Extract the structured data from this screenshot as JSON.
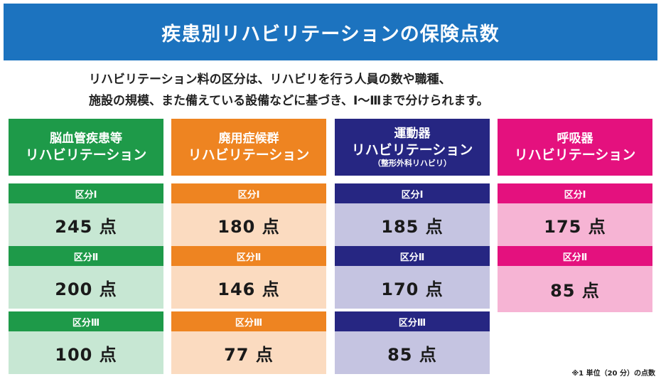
{
  "title": "疾患別リハビリテーションの保険点数",
  "intro": {
    "line1": "リハビリテーション料の区分は、リハビリを行う人員の数や職種、",
    "line2": "施設の規模、また備えている設備などに基づき、Ⅰ～Ⅲまで分けられます。"
  },
  "colors": {
    "title_bg": "#1c73bf",
    "green": "#1e9a49",
    "green_light": "#c7e7d3",
    "orange": "#ee8421",
    "orange_light": "#fbdbc0",
    "navy": "#262682",
    "navy_light": "#c5c4e1",
    "pink": "#e4117e",
    "pink_light": "#f6b4d4"
  },
  "columns": [
    {
      "header_line1": "脳血管疾患等",
      "header_line2": "リハビリテーション",
      "header_line3": "",
      "tiers": [
        {
          "label": "区分Ⅰ",
          "value": "245 点"
        },
        {
          "label": "区分Ⅱ",
          "value": "200 点"
        },
        {
          "label": "区分Ⅲ",
          "value": "100 点"
        }
      ]
    },
    {
      "header_line1": "廃用症候群",
      "header_line2": "リハビリテーション",
      "header_line3": "",
      "tiers": [
        {
          "label": "区分Ⅰ",
          "value": "180 点"
        },
        {
          "label": "区分Ⅱ",
          "value": "146 点"
        },
        {
          "label": "区分Ⅲ",
          "value": "77 点"
        }
      ]
    },
    {
      "header_line1": "運動器",
      "header_line2": "リハビリテーション",
      "header_line3": "（整形外科リハビリ）",
      "tiers": [
        {
          "label": "区分Ⅰ",
          "value": "185 点"
        },
        {
          "label": "区分Ⅱ",
          "value": "170 点"
        },
        {
          "label": "区分Ⅲ",
          "value": "85 点"
        }
      ]
    },
    {
      "header_line1": "呼吸器",
      "header_line2": "リハビリテーション",
      "header_line3": "",
      "tiers": [
        {
          "label": "区分Ⅰ",
          "value": "175 点"
        },
        {
          "label": "区分Ⅱ",
          "value": "85 点"
        }
      ]
    }
  ],
  "footnote": "※1 単位（20 分）の点数"
}
